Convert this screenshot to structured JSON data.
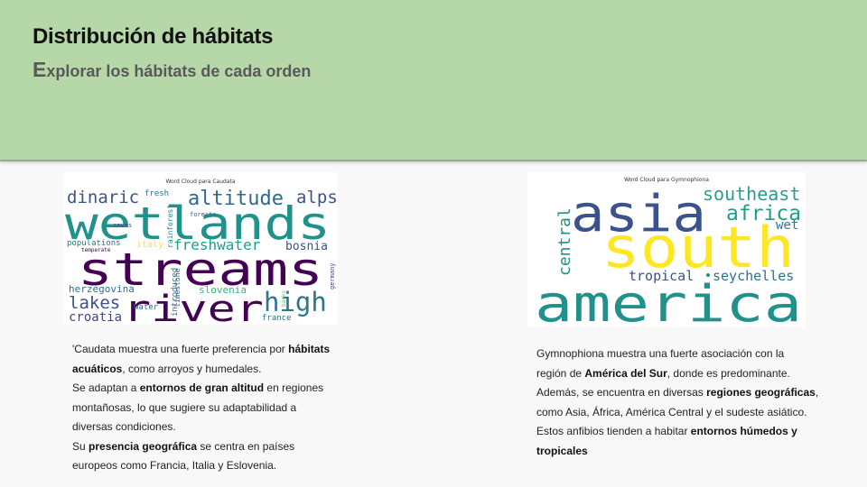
{
  "header": {
    "title": "Distribución de hábitats",
    "subtitle_initial": "E",
    "subtitle_rest": "xplorar los hábitats de cada orden"
  },
  "cloud_caudata": {
    "title": "Word Cloud para Caudata",
    "words": [
      "dinaric",
      "fresh",
      "altitude",
      "alps",
      "wetlands",
      "caves",
      "forests",
      "rainforest",
      "populations",
      "temperate",
      "italy",
      "freshwater",
      "bosnia",
      "streams",
      "limestone",
      "germany",
      "herzegovina",
      "slovenia",
      "introduced",
      "lakes",
      "high",
      "banks",
      "croatia",
      "river",
      "water",
      "france"
    ]
  },
  "cloud_gymnophiona": {
    "title": "Word Cloud para Gymnophiona",
    "words": [
      "southeast",
      "asia",
      "africa",
      "central",
      "wet",
      "south",
      "tropical",
      "seychelles",
      "america"
    ]
  },
  "caudata_text": {
    "l1a": "'Caudata muestra una fuerte preferencia  por ",
    "l1b": "hábitats",
    "l2a": "acuáticos",
    "l2b": ",  como arroyos y humedales.",
    "l3a": "Se adaptan a ",
    "l3b": "entornos de gran altitud",
    "l3c": "  en regiones",
    "l4": "montañosas, lo que sugiere su adaptabilidad a",
    "l5": "diversas condiciones.",
    "l6a": "Su ",
    "l6b": "presencia  geográfica",
    "l6c": "  se centra en países",
    "l7": "europeos como Francia, Italia y Eslovenia."
  },
  "gymno_text": {
    "l1": "Gymnophiona muestra una fuerte asociación con la",
    "l2a": "región de ",
    "l2b": "América  del Sur",
    "l2c": ", donde es  predominante.",
    "l3a": "Además, se encuentra en diversas ",
    "l3b": "regiones geográficas",
    "l3c": ",",
    "l4": "como Asia, África, América Central y el sudeste asiático.",
    "l5a": "Estos anfibios tienden a habitar ",
    "l5b": "entornos húmedos y",
    "l6": "tropicales"
  }
}
